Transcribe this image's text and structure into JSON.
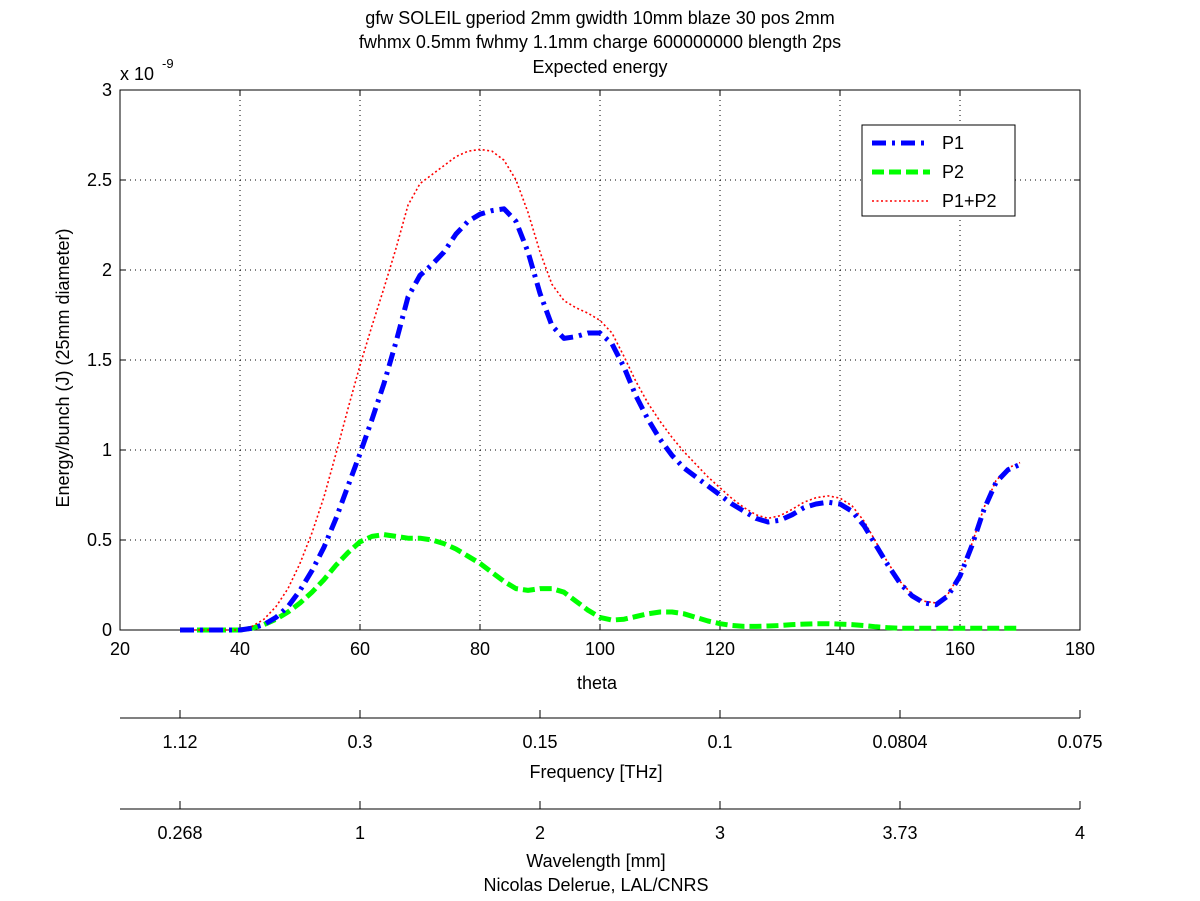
{
  "chart_data": {
    "type": "line",
    "title_lines": [
      "gfw SOLEIL gperiod 2mm gwidth 10mm blaze 30 pos 2mm",
      "fwhmx 0.5mm fwhmy 1.1mm charge 600000000 blength 2ps",
      "Expected energy"
    ],
    "xlabel": "theta",
    "ylabel": "Energy/bunch (J) (25mm diameter)",
    "y_multiplier": "x 10",
    "y_multiplier_exponent": "-9",
    "xlim": [
      20,
      180
    ],
    "ylim": [
      0,
      3
    ],
    "x_ticks": [
      20,
      40,
      60,
      80,
      100,
      120,
      140,
      160,
      180
    ],
    "y_ticks": [
      0,
      0.5,
      1,
      1.5,
      2,
      2.5,
      3
    ],
    "y_tick_labels": [
      "0",
      "0.5",
      "1",
      "1.5",
      "2",
      "2.5",
      "3"
    ],
    "grid": true,
    "legend_position": "top-right",
    "series": [
      {
        "name": "P1",
        "color": "#0000ff",
        "style": "dash-dot",
        "x": [
          30,
          35,
          40,
          42,
          44,
          46,
          48,
          50,
          52,
          54,
          56,
          58,
          60,
          62,
          64,
          66,
          68,
          70,
          72,
          74,
          76,
          78,
          80,
          82,
          84,
          86,
          88,
          90,
          92,
          94,
          96,
          98,
          100,
          102,
          104,
          106,
          108,
          110,
          112,
          114,
          116,
          118,
          120,
          122,
          124,
          126,
          128,
          130,
          132,
          134,
          136,
          138,
          140,
          142,
          144,
          146,
          148,
          150,
          152,
          154,
          156,
          158,
          160,
          162,
          164,
          166,
          168,
          170
        ],
        "values": [
          0,
          0,
          0,
          0.01,
          0.03,
          0.07,
          0.13,
          0.22,
          0.33,
          0.46,
          0.62,
          0.8,
          0.98,
          1.17,
          1.37,
          1.6,
          1.85,
          1.97,
          2.03,
          2.1,
          2.2,
          2.27,
          2.31,
          2.33,
          2.34,
          2.27,
          2.1,
          1.87,
          1.69,
          1.62,
          1.63,
          1.65,
          1.65,
          1.59,
          1.46,
          1.3,
          1.17,
          1.06,
          0.97,
          0.9,
          0.85,
          0.8,
          0.75,
          0.7,
          0.66,
          0.62,
          0.6,
          0.61,
          0.64,
          0.68,
          0.7,
          0.71,
          0.7,
          0.66,
          0.58,
          0.47,
          0.36,
          0.26,
          0.19,
          0.15,
          0.14,
          0.19,
          0.3,
          0.47,
          0.67,
          0.82,
          0.89,
          0.92
        ]
      },
      {
        "name": "P2",
        "color": "#00ff00",
        "style": "dashed",
        "x": [
          30,
          35,
          40,
          42,
          44,
          46,
          48,
          50,
          52,
          54,
          56,
          58,
          60,
          62,
          64,
          66,
          68,
          70,
          72,
          74,
          76,
          78,
          80,
          82,
          84,
          86,
          88,
          90,
          92,
          94,
          96,
          98,
          100,
          102,
          104,
          106,
          108,
          110,
          112,
          114,
          116,
          118,
          120,
          122,
          124,
          126,
          128,
          130,
          132,
          134,
          136,
          138,
          140,
          142,
          144,
          146,
          148,
          150,
          155,
          160,
          165,
          170
        ],
        "values": [
          0,
          0,
          0,
          0.01,
          0.03,
          0.06,
          0.1,
          0.15,
          0.21,
          0.28,
          0.36,
          0.43,
          0.49,
          0.52,
          0.53,
          0.52,
          0.51,
          0.51,
          0.5,
          0.48,
          0.45,
          0.41,
          0.37,
          0.32,
          0.27,
          0.23,
          0.22,
          0.23,
          0.23,
          0.21,
          0.16,
          0.11,
          0.07,
          0.055,
          0.06,
          0.075,
          0.09,
          0.1,
          0.1,
          0.09,
          0.07,
          0.05,
          0.035,
          0.025,
          0.02,
          0.02,
          0.022,
          0.025,
          0.03,
          0.033,
          0.035,
          0.035,
          0.033,
          0.03,
          0.025,
          0.018,
          0.013,
          0.01,
          0.01,
          0.01,
          0.01,
          0.01
        ]
      },
      {
        "name": "P1+P2",
        "color": "#ff0000",
        "style": "dotted",
        "x": [
          30,
          35,
          40,
          42,
          44,
          46,
          48,
          50,
          52,
          54,
          56,
          58,
          60,
          62,
          64,
          66,
          68,
          70,
          72,
          74,
          76,
          78,
          80,
          82,
          84,
          86,
          88,
          90,
          92,
          94,
          96,
          98,
          100,
          102,
          104,
          106,
          108,
          110,
          112,
          114,
          116,
          118,
          120,
          122,
          124,
          126,
          128,
          130,
          132,
          134,
          136,
          138,
          140,
          142,
          144,
          146,
          148,
          150,
          152,
          154,
          156,
          158,
          160,
          162,
          164,
          166,
          168,
          170
        ],
        "values": [
          0,
          0,
          0,
          0.02,
          0.06,
          0.13,
          0.23,
          0.37,
          0.54,
          0.74,
          0.98,
          1.23,
          1.47,
          1.69,
          1.9,
          2.12,
          2.36,
          2.48,
          2.53,
          2.58,
          2.63,
          2.66,
          2.67,
          2.66,
          2.61,
          2.5,
          2.32,
          2.1,
          1.92,
          1.83,
          1.79,
          1.76,
          1.72,
          1.65,
          1.52,
          1.38,
          1.26,
          1.16,
          1.07,
          0.99,
          0.92,
          0.85,
          0.79,
          0.73,
          0.68,
          0.64,
          0.62,
          0.635,
          0.67,
          0.71,
          0.735,
          0.745,
          0.733,
          0.69,
          0.605,
          0.488,
          0.373,
          0.27,
          0.2,
          0.16,
          0.15,
          0.2,
          0.31,
          0.48,
          0.68,
          0.83,
          0.9,
          0.93
        ]
      }
    ],
    "secondary_axes": [
      {
        "label": "Frequency [THz]",
        "ticks": [
          {
            "theta": 30,
            "label": "1.12"
          },
          {
            "theta": 60,
            "label": "0.3"
          },
          {
            "theta": 90,
            "label": "0.15"
          },
          {
            "theta": 120,
            "label": "0.1"
          },
          {
            "theta": 150,
            "label": "0.0804"
          },
          {
            "theta": 180,
            "label": "0.075"
          }
        ]
      },
      {
        "label": "Wavelength [mm]",
        "ticks": [
          {
            "theta": 30,
            "label": "0.268"
          },
          {
            "theta": 60,
            "label": "1"
          },
          {
            "theta": 90,
            "label": "2"
          },
          {
            "theta": 120,
            "label": "3"
          },
          {
            "theta": 150,
            "label": "3.73"
          },
          {
            "theta": 180,
            "label": "4"
          }
        ]
      }
    ],
    "credit": "Nicolas Delerue, LAL/CNRS"
  }
}
